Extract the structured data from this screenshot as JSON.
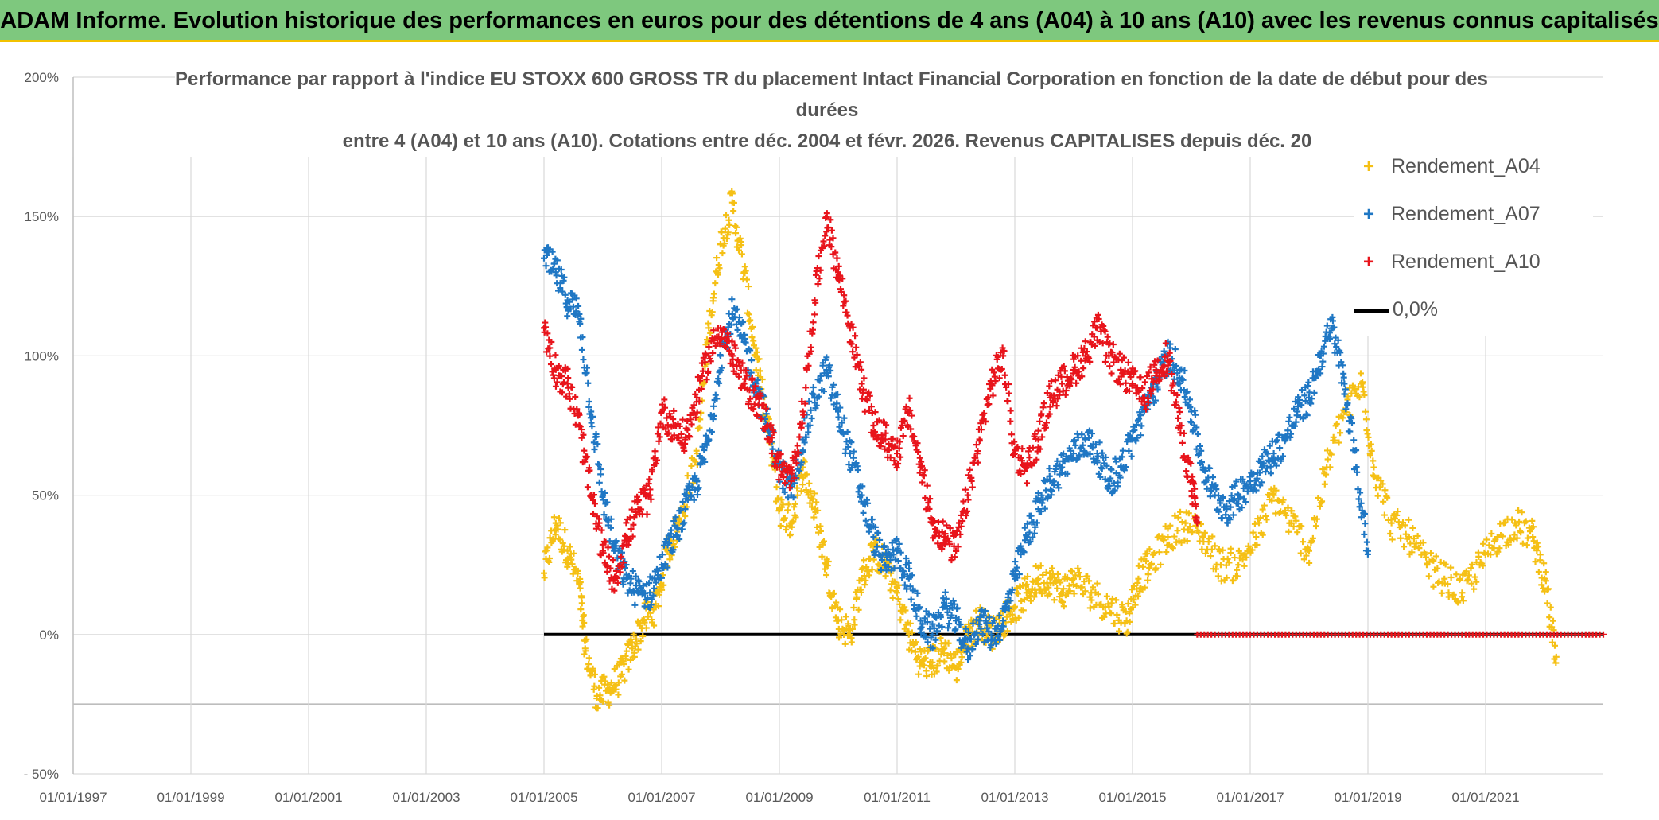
{
  "header": {
    "banner": "ADAM Informe. Evolution historique des performances en euros pour des détentions de 4 ans (A04) à 10 ans (A10) avec les revenus connus capitalisés"
  },
  "colors": {
    "banner_bg": "#7ec87e",
    "a04": "#f5c015",
    "a07": "#1f77c4",
    "a10": "#e8141b",
    "zero": "#000000",
    "grid": "#d9d9d9"
  },
  "chart_data": {
    "type": "scatter",
    "title_lines": [
      "Performance par rapport à l'indice EU STOXX 600 GROSS TR  du placement Intact Financial Corporation en fonction de la date de début pour des",
      "durées",
      "entre 4 (A04) et 10 ans (A10). Cotations entre déc. 2004 et févr. 2026. Revenus CAPITALISES depuis déc. 20"
    ],
    "x_range": [
      1997.0,
      2023.0
    ],
    "x_ticks": [
      1997,
      1999,
      2001,
      2003,
      2005,
      2007,
      2009,
      2011,
      2013,
      2015,
      2017,
      2019,
      2021
    ],
    "x_tick_labels": [
      "01/01/1997",
      "01/01/1999",
      "01/01/2001",
      "01/01/2003",
      "01/01/2005",
      "01/01/2007",
      "01/01/2009",
      "01/01/2011",
      "01/01/2013",
      "01/01/2015",
      "01/01/2017",
      "01/01/2019",
      "01/01/2021"
    ],
    "y_range": [
      -50,
      200
    ],
    "y_ticks": [
      200,
      150,
      100,
      50,
      0,
      -25,
      -50
    ],
    "y_tick_labels": [
      "200%",
      "150%",
      "100%",
      "50%",
      "0%",
      "",
      "- 50%"
    ],
    "ylabel_unit": "%",
    "legend": [
      "Rendement_A04",
      "Rendement_A07",
      "Rendement_A10",
      "0,0%"
    ],
    "series": [
      {
        "name": "Rendement_A04",
        "marker": "+",
        "x": [
          2005.0,
          2005.2,
          2005.4,
          2005.6,
          2005.7,
          2005.9,
          2006.1,
          2006.3,
          2006.5,
          2006.7,
          2006.9,
          2007.1,
          2007.3,
          2007.6,
          2007.8,
          2008.0,
          2008.2,
          2008.4,
          2008.6,
          2008.8,
          2009.0,
          2009.2,
          2009.4,
          2009.6,
          2009.8,
          2010.0,
          2010.2,
          2010.4,
          2010.6,
          2010.8,
          2011.0,
          2011.2,
          2011.4,
          2011.6,
          2011.8,
          2012.0,
          2012.2,
          2012.4,
          2012.6,
          2012.8,
          2013.0,
          2013.2,
          2013.4,
          2013.6,
          2013.8,
          2014.0,
          2014.3,
          2014.6,
          2014.9,
          2015.1,
          2015.3,
          2015.6,
          2015.9,
          2016.2,
          2016.5,
          2016.8,
          2017.1,
          2017.4,
          2017.7,
          2018.0,
          2018.3,
          2018.6,
          2018.9,
          2019.1,
          2019.4,
          2019.7,
          2020.0,
          2020.3,
          2020.6,
          2020.9,
          2021.2,
          2021.5,
          2021.8,
          2022.0,
          2022.2
        ],
        "y": [
          22,
          40,
          30,
          18,
          -5,
          -22,
          -20,
          -15,
          -5,
          5,
          10,
          30,
          40,
          65,
          110,
          140,
          155,
          130,
          100,
          75,
          45,
          40,
          60,
          45,
          25,
          5,
          0,
          20,
          30,
          25,
          15,
          0,
          -10,
          -10,
          -5,
          -12,
          0,
          5,
          0,
          5,
          10,
          15,
          20,
          20,
          15,
          20,
          15,
          10,
          5,
          20,
          25,
          35,
          40,
          35,
          25,
          25,
          35,
          50,
          40,
          30,
          60,
          80,
          90,
          60,
          40,
          35,
          25,
          20,
          15,
          25,
          35,
          40,
          35,
          20,
          -8
        ]
      },
      {
        "name": "Rendement_A07",
        "marker": "+",
        "x": [
          2005.0,
          2005.2,
          2005.4,
          2005.6,
          2005.8,
          2006.0,
          2006.2,
          2006.4,
          2006.6,
          2006.8,
          2007.0,
          2007.2,
          2007.4,
          2007.6,
          2007.8,
          2008.0,
          2008.2,
          2008.4,
          2008.6,
          2008.8,
          2009.0,
          2009.2,
          2009.4,
          2009.6,
          2009.8,
          2010.0,
          2010.2,
          2010.4,
          2010.6,
          2010.8,
          2011.0,
          2011.2,
          2011.4,
          2011.6,
          2011.8,
          2012.0,
          2012.2,
          2012.4,
          2012.6,
          2012.8,
          2013.0,
          2013.2,
          2013.4,
          2013.6,
          2013.8,
          2014.0,
          2014.2,
          2014.4,
          2014.6,
          2014.8,
          2015.0,
          2015.2,
          2015.4,
          2015.6,
          2015.8,
          2016.0,
          2016.2,
          2016.4,
          2016.6,
          2016.8,
          2017.0,
          2017.2,
          2017.4,
          2017.6,
          2017.8,
          2018.0,
          2018.2,
          2018.4,
          2018.6,
          2018.8,
          2019.0
        ],
        "y": [
          135,
          130,
          120,
          115,
          80,
          50,
          30,
          20,
          15,
          15,
          25,
          35,
          45,
          55,
          70,
          100,
          115,
          105,
          90,
          75,
          60,
          50,
          70,
          85,
          95,
          80,
          65,
          50,
          35,
          25,
          30,
          20,
          5,
          0,
          10,
          5,
          -5,
          5,
          0,
          5,
          20,
          35,
          45,
          55,
          60,
          65,
          70,
          65,
          55,
          60,
          70,
          80,
          90,
          100,
          95,
          80,
          60,
          50,
          45,
          50,
          55,
          60,
          65,
          70,
          80,
          85,
          100,
          110,
          90,
          60,
          30
        ]
      },
      {
        "name": "Rendement_A10",
        "marker": "+",
        "x": [
          2005.0,
          2005.2,
          2005.4,
          2005.6,
          2005.8,
          2006.0,
          2006.2,
          2006.4,
          2006.6,
          2006.8,
          2007.0,
          2007.2,
          2007.4,
          2007.6,
          2007.8,
          2008.0,
          2008.2,
          2008.4,
          2008.6,
          2008.8,
          2009.0,
          2009.2,
          2009.4,
          2009.6,
          2009.8,
          2010.0,
          2010.2,
          2010.4,
          2010.6,
          2010.8,
          2011.0,
          2011.2,
          2011.4,
          2011.6,
          2011.8,
          2012.0,
          2012.2,
          2012.4,
          2012.6,
          2012.8,
          2013.0,
          2013.2,
          2013.4,
          2013.6,
          2013.8,
          2014.0,
          2014.2,
          2014.4,
          2014.6,
          2014.8,
          2015.0,
          2015.2,
          2015.4,
          2015.6,
          2015.8,
          2016.0,
          2016.1
        ],
        "y": [
          110,
          95,
          90,
          75,
          50,
          30,
          20,
          35,
          45,
          50,
          80,
          75,
          70,
          85,
          100,
          110,
          100,
          90,
          85,
          75,
          60,
          55,
          80,
          120,
          150,
          130,
          110,
          90,
          75,
          70,
          65,
          80,
          60,
          40,
          35,
          30,
          50,
          70,
          90,
          100,
          65,
          60,
          70,
          85,
          90,
          95,
          100,
          110,
          100,
          95,
          90,
          85,
          95,
          100,
          75,
          55,
          40
        ]
      },
      {
        "name": "0,0%",
        "type": "line",
        "x": [
          2005.0,
          2023.0
        ],
        "y": [
          0,
          0
        ]
      }
    ],
    "zero_dots_a10": {
      "x_start": 2016.1,
      "x_end": 2023.0,
      "y": 0
    }
  }
}
